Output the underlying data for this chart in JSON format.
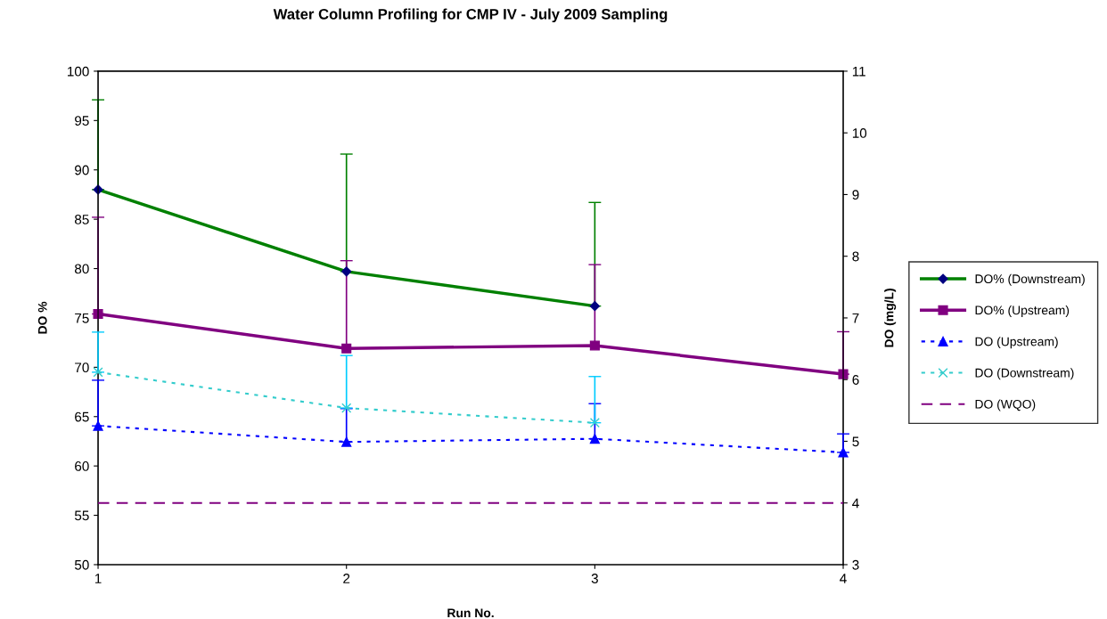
{
  "chart_data": {
    "type": "line",
    "title": "Water Column Profiling for CMP IV - July 2009 Sampling",
    "xlabel": "Run No.",
    "ylabel": "DO %",
    "y2label": "DO (mg/L)",
    "x": [
      1,
      2,
      3,
      4
    ],
    "xlim": [
      1,
      4
    ],
    "xticks": [
      1,
      2,
      3,
      4
    ],
    "ylim": [
      50,
      100
    ],
    "yticks": [
      50,
      55,
      60,
      65,
      70,
      75,
      80,
      85,
      90,
      95,
      100
    ],
    "y2lim": [
      3,
      11
    ],
    "y2ticks": [
      3,
      4,
      5,
      6,
      7,
      8,
      9,
      10,
      11
    ],
    "grid": false,
    "legend": "right",
    "series": [
      {
        "name": "DO% (Downstream)",
        "color": "#008000",
        "marker": "diamond",
        "line_style": "solid",
        "values": [
          88.0,
          79.7,
          76.2,
          null
        ],
        "errors": [
          [
            88.0,
            97.1
          ],
          [
            79.7,
            91.6
          ],
          [
            76.2,
            86.7
          ],
          null
        ]
      },
      {
        "name": "DO% (Upstream)",
        "color": "#800080",
        "marker": "square",
        "line_style": "solid",
        "values": [
          75.4,
          71.9,
          72.2,
          69.3
        ],
        "errors": [
          [
            75.4,
            85.2
          ],
          [
            71.9,
            80.8
          ],
          [
            72.2,
            80.4
          ],
          [
            69.3,
            73.6
          ]
        ]
      },
      {
        "name": "DO (Upstream)",
        "color": "#0000ff",
        "marker": "triangle",
        "line_style": "dotted",
        "axis": "y2",
        "values": [
          5.25,
          4.99,
          5.04,
          4.82
        ],
        "errors": [
          [
            5.25,
            5.99
          ],
          [
            4.99,
            5.53
          ],
          [
            5.04,
            5.61
          ],
          [
            4.82,
            5.12
          ]
        ]
      },
      {
        "name": "DO (Downstream)",
        "color": "#33cccc",
        "marker": "cross",
        "line_style": "dotted",
        "axis": "y2",
        "values": [
          6.12,
          5.54,
          5.3,
          null
        ],
        "errors": [
          [
            6.12,
            6.77
          ],
          [
            5.54,
            6.39
          ],
          [
            5.3,
            6.05
          ],
          null
        ]
      },
      {
        "name": "DO (WQO)",
        "color": "#800080",
        "marker": "none",
        "line_style": "dashed",
        "axis": "y2",
        "values": [
          4,
          4,
          4,
          4
        ]
      }
    ]
  }
}
